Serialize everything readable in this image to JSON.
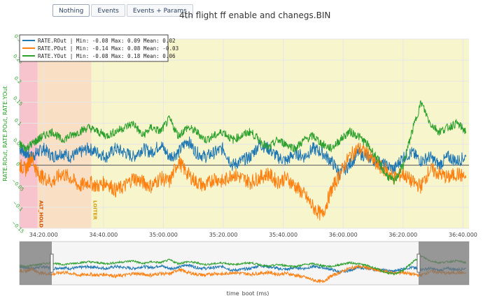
{
  "toolbar": {
    "buttons": [
      {
        "label": "Nothing",
        "active": true
      },
      {
        "label": "Events",
        "active": false
      },
      {
        "label": "Events + Params",
        "active": false
      }
    ]
  },
  "chart_data": {
    "type": "line",
    "title": "4th flight ff enable and chanegs.BIN",
    "xlabel": "time_boot (ms)",
    "ylabel": "RATE.ROut, RATE.POut, RATE.YOut",
    "ylim": [
      -0.15,
      0.3
    ],
    "xlim": [
      "34:12.000",
      "36:42.000"
    ],
    "xlim_seconds": [
      2052,
      2202
    ],
    "x_ticks": [
      {
        "label": "34:20.000",
        "value": 2060
      },
      {
        "label": "34:40.000",
        "value": 2080
      },
      {
        "label": "35:00.000",
        "value": 2100
      },
      {
        "label": "35:20.000",
        "value": 2120
      },
      {
        "label": "35:40.000",
        "value": 2140
      },
      {
        "label": "36:00.000",
        "value": 2160
      },
      {
        "label": "36:20.000",
        "value": 2180
      },
      {
        "label": "36:40.000",
        "value": 2200
      }
    ],
    "y_ticks": [
      -0.15,
      -0.1,
      -0.05,
      0,
      0.05,
      0.1,
      0.15,
      0.2,
      0.25,
      0.3
    ],
    "y_tick_labels": [
      "−0.15",
      "−0.1",
      "−0.05",
      "0",
      "0.05",
      "0.1",
      "0.15",
      "0.2",
      "0.25",
      "0.3"
    ],
    "grid": true,
    "legend_position": "top-left",
    "flight_modes": [
      {
        "label": "",
        "start": 2052,
        "end": 2058,
        "color": "#f7c3cc"
      },
      {
        "label": "ALT_HOLD",
        "start": 2058,
        "end": 2076,
        "color": "#f9dfc4"
      },
      {
        "label": "LOITER",
        "start": 2076,
        "end": 2202,
        "color": "#f7f5cc"
      }
    ],
    "mode_label_colors": {
      "ALT_HOLD": "#d35400",
      "LOITER": "#d4a017"
    },
    "series": [
      {
        "name": "RATE.ROut",
        "legend": "RATE.ROut | Min: -0.08     Max: 0.09     Mean: 0.02",
        "color": "#1f77b4",
        "x": [
          2052,
          2054,
          2056,
          2058,
          2060,
          2063,
          2066,
          2069,
          2072,
          2075,
          2078,
          2081,
          2084,
          2087,
          2090,
          2093,
          2096,
          2099,
          2102,
          2105,
          2108,
          2111,
          2114,
          2117,
          2120,
          2123,
          2126,
          2129,
          2132,
          2135,
          2138,
          2141,
          2144,
          2147,
          2150,
          2153,
          2156,
          2159,
          2162,
          2165,
          2168,
          2171,
          2174,
          2177,
          2180,
          2183,
          2186,
          2189,
          2192,
          2195,
          2198,
          2201
        ],
        "values": [
          0.04,
          0.03,
          0.02,
          0.03,
          0.04,
          0.02,
          0.03,
          0.02,
          0.03,
          0.04,
          0.03,
          0.02,
          0.04,
          0.03,
          0.02,
          0.04,
          0.03,
          0.05,
          0.02,
          0.03,
          0.06,
          0.03,
          0.02,
          0.03,
          0.04,
          0.0,
          0.01,
          0.02,
          0.05,
          0.04,
          0.02,
          0.01,
          0.03,
          0.02,
          0.04,
          0.03,
          0.01,
          -0.02,
          0.0,
          0.03,
          0.02,
          0.01,
          0.0,
          -0.01,
          0.02,
          0.03,
          0.01,
          0.02,
          0.0,
          0.02,
          0.01,
          0.02
        ],
        "min": -0.08,
        "max": 0.09,
        "mean": 0.02
      },
      {
        "name": "RATE.POut",
        "legend": "RATE.POut | Min: -0.14     Max: 0.08     Mean: -0.03",
        "color": "#ff7f0e",
        "x": [
          2052,
          2054,
          2056,
          2058,
          2060,
          2063,
          2066,
          2069,
          2072,
          2075,
          2078,
          2081,
          2084,
          2087,
          2090,
          2093,
          2096,
          2099,
          2102,
          2105,
          2108,
          2111,
          2114,
          2117,
          2120,
          2123,
          2126,
          2129,
          2132,
          2135,
          2138,
          2141,
          2144,
          2147,
          2150,
          2153,
          2156,
          2159,
          2162,
          2165,
          2168,
          2171,
          2174,
          2177,
          2180,
          2183,
          2186,
          2189,
          2192,
          2195,
          2198,
          2201
        ],
        "values": [
          0.0,
          -0.01,
          0.02,
          -0.02,
          -0.03,
          -0.04,
          -0.02,
          -0.03,
          -0.05,
          -0.04,
          -0.05,
          -0.04,
          -0.06,
          -0.05,
          -0.03,
          -0.04,
          -0.05,
          -0.03,
          -0.04,
          0.01,
          -0.02,
          -0.04,
          -0.05,
          -0.03,
          -0.04,
          -0.02,
          -0.03,
          -0.04,
          -0.03,
          -0.02,
          -0.04,
          -0.03,
          -0.05,
          -0.07,
          -0.1,
          -0.12,
          -0.06,
          -0.02,
          0.02,
          0.04,
          0.03,
          0.0,
          -0.01,
          -0.03,
          -0.02,
          -0.04,
          -0.05,
          -0.01,
          -0.02,
          -0.03,
          -0.02,
          -0.03
        ],
        "min": -0.14,
        "max": 0.08,
        "mean": -0.03
      },
      {
        "name": "RATE.YOut",
        "legend": "RATE.YOut | Min: -0.08     Max: 0.18     Mean: 0.06",
        "color": "#2ca02c",
        "x": [
          2052,
          2054,
          2056,
          2058,
          2060,
          2063,
          2066,
          2069,
          2072,
          2075,
          2078,
          2081,
          2084,
          2087,
          2090,
          2093,
          2096,
          2099,
          2102,
          2105,
          2108,
          2111,
          2114,
          2117,
          2120,
          2123,
          2126,
          2129,
          2132,
          2135,
          2138,
          2141,
          2144,
          2147,
          2150,
          2153,
          2156,
          2159,
          2162,
          2165,
          2168,
          2171,
          2174,
          2177,
          2180,
          2183,
          2186,
          2189,
          2192,
          2195,
          2198,
          2201
        ],
        "values": [
          0.05,
          0.04,
          0.05,
          0.06,
          0.07,
          0.08,
          0.06,
          0.07,
          0.08,
          0.09,
          0.08,
          0.07,
          0.08,
          0.09,
          0.1,
          0.07,
          0.09,
          0.08,
          0.11,
          0.07,
          0.09,
          0.08,
          0.06,
          0.07,
          0.08,
          0.06,
          0.07,
          0.08,
          0.06,
          0.04,
          0.06,
          0.05,
          0.04,
          0.06,
          0.07,
          0.05,
          0.04,
          0.06,
          0.08,
          0.07,
          0.05,
          0.02,
          -0.02,
          -0.04,
          0.0,
          0.08,
          0.15,
          0.1,
          0.08,
          0.09,
          0.1,
          0.08
        ],
        "min": -0.08,
        "max": 0.18,
        "mean": 0.06
      }
    ],
    "range_slider": {
      "visible": true,
      "selected": [
        "34:12.000",
        "36:42.000"
      ]
    }
  }
}
